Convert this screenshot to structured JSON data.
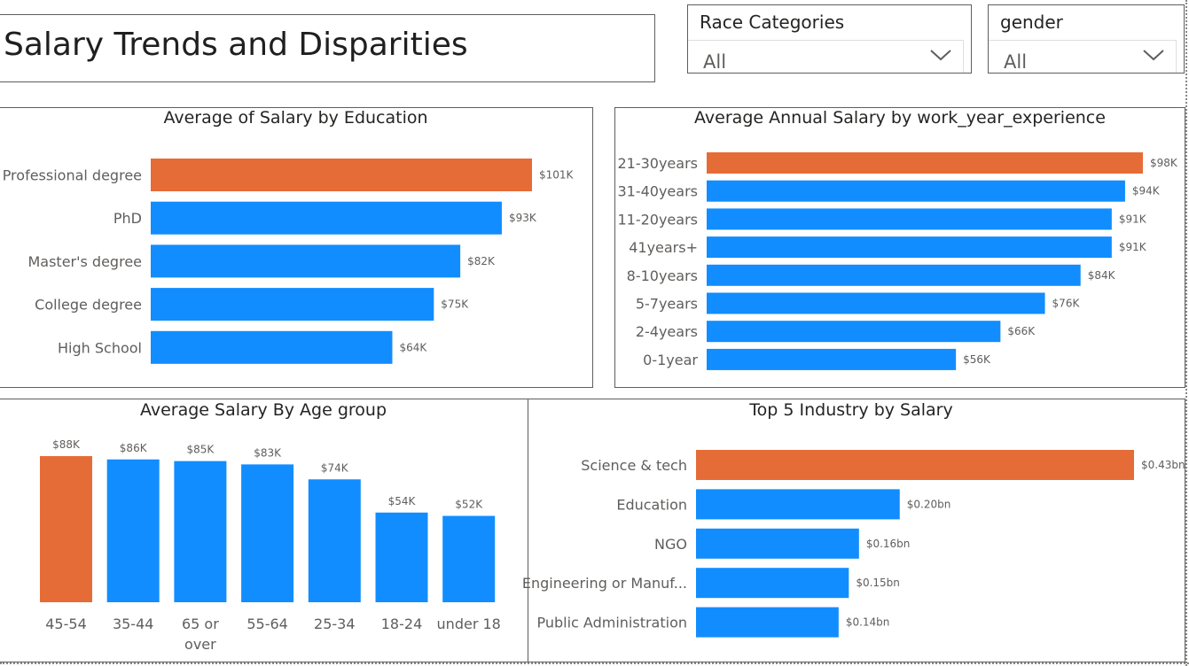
{
  "page": {
    "title": "Salary Trends and Disparities"
  },
  "slicers": [
    {
      "label": "Race Categories",
      "value": "All"
    },
    {
      "label": "gender",
      "value": "All"
    }
  ],
  "colors": {
    "highlight": "#e66c37",
    "bar": "#118dff",
    "label": "#605e5c",
    "dataLabel": "#605e5c"
  },
  "chart_data": [
    {
      "type": "bar",
      "orientation": "horizontal",
      "title": "Average of Salary by Education",
      "categories": [
        "Professional degree",
        "PhD",
        "Master's degree",
        "College degree",
        "High School"
      ],
      "values": [
        101,
        93,
        82,
        75,
        64
      ],
      "value_labels": [
        "$101K",
        "$93K",
        "$82K",
        "$75K",
        "$64K"
      ],
      "highlight_index": 0
    },
    {
      "type": "bar",
      "orientation": "horizontal",
      "title": "Average Annual Salary by work_year_experience",
      "categories": [
        "21-30years",
        "31-40years",
        "11-20years",
        "41years+",
        "8-10years",
        "5-7years",
        "2-4years",
        "0-1year"
      ],
      "values": [
        98,
        94,
        91,
        91,
        84,
        76,
        66,
        56
      ],
      "value_labels": [
        "$98K",
        "$94K",
        "$91K",
        "$91K",
        "$84K",
        "$76K",
        "$66K",
        "$56K"
      ],
      "highlight_index": 0
    },
    {
      "type": "bar",
      "orientation": "vertical",
      "title": "Average Salary By Age group",
      "categories": [
        "45-54",
        "35-44",
        "65 or over",
        "55-64",
        "25-34",
        "18-24",
        "under 18"
      ],
      "category_lines": [
        [
          "45-54"
        ],
        [
          "35-44"
        ],
        [
          "65 or",
          "over"
        ],
        [
          "55-64"
        ],
        [
          "25-34"
        ],
        [
          "18-24"
        ],
        [
          "under 18"
        ]
      ],
      "values": [
        88,
        86,
        85,
        83,
        74,
        54,
        52
      ],
      "value_labels": [
        "$88K",
        "$86K",
        "$85K",
        "$83K",
        "$74K",
        "$54K",
        "$52K"
      ],
      "highlight_index": 0
    },
    {
      "type": "bar",
      "orientation": "horizontal",
      "title": "Top 5 Industry by Salary",
      "categories": [
        "Science & tech",
        "Education",
        "NGO",
        "Engineering or Manuf...",
        "Public Administration"
      ],
      "values": [
        0.43,
        0.2,
        0.16,
        0.15,
        0.14
      ],
      "value_labels": [
        "$0.43bn",
        "$0.20bn",
        "$0.16bn",
        "$0.15bn",
        "$0.14bn"
      ],
      "highlight_index": 0
    }
  ]
}
